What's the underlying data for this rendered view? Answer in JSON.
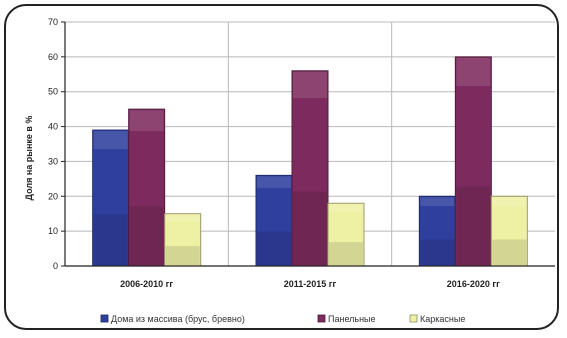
{
  "chart_data": {
    "type": "bar",
    "ylabel": "Доля на рынке в %",
    "xlabel": "",
    "ylim": [
      0,
      70
    ],
    "yticks": [
      "0",
      "10",
      "20",
      "30",
      "40",
      "50",
      "60",
      "70"
    ],
    "grid": "horizontal",
    "legend_position": "bottom",
    "categories": [
      "2006-2010 гг",
      "2011-2015 гг",
      "2016-2020 гг"
    ],
    "series": [
      {
        "name": "Дома из массива (брус, бревно)",
        "values": [
          39,
          26,
          20
        ],
        "color": "#2f3f9e"
      },
      {
        "name": "Панельные",
        "values": [
          45,
          56,
          60
        ],
        "color": "#7d2a5e"
      },
      {
        "name": "Каркасные",
        "values": [
          15,
          18,
          20
        ],
        "color": "#eef0a4"
      }
    ]
  }
}
